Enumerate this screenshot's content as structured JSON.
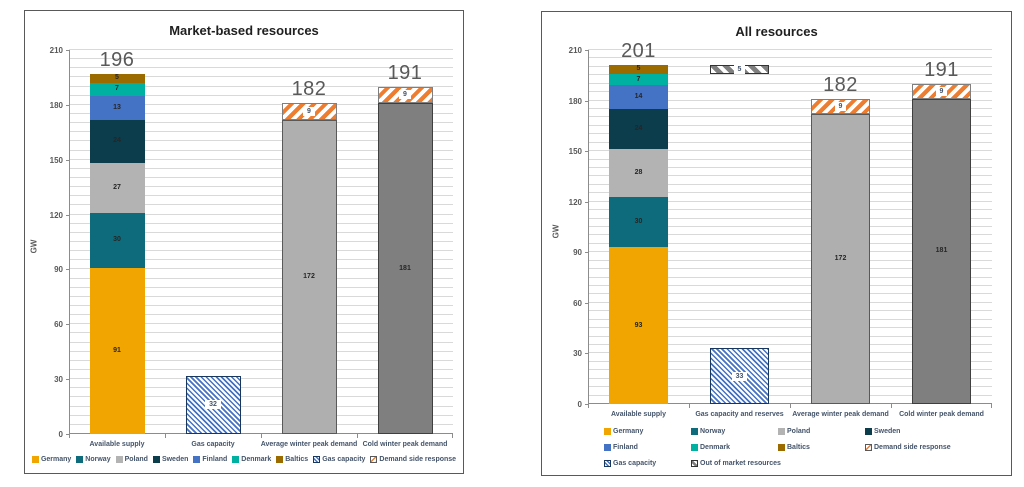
{
  "chart_data": [
    {
      "type": "bar",
      "stacked": true,
      "title": "Market-based resources",
      "ylabel": "GW",
      "ylim": [
        0,
        210
      ],
      "yticks": [
        0,
        30,
        60,
        90,
        120,
        150,
        180,
        210
      ],
      "minor_grid_step": 5,
      "grid": true,
      "legend_position": "bottom",
      "categories": [
        "Available supply",
        "Gas capacity",
        "Average winter peak demand",
        "Cold winter peak demand"
      ],
      "columns": [
        {
          "category": "Available supply",
          "total_label": "196",
          "segments": [
            {
              "name": "Germany",
              "value": 91,
              "label": "91",
              "fill": "#F0A500"
            },
            {
              "name": "Norway",
              "value": 30,
              "label": "30",
              "fill": "#0E6B7B"
            },
            {
              "name": "Poland",
              "value": 27,
              "label": "27",
              "fill": "#B3B3B3"
            },
            {
              "name": "Sweden",
              "value": 24,
              "label": "24",
              "fill": "#0B3D4D"
            },
            {
              "name": "Finland",
              "value": 13,
              "label": "13",
              "fill": "#4472C4"
            },
            {
              "name": "Denmark",
              "value": 7,
              "label": "7",
              "fill": "#00B0A0"
            },
            {
              "name": "Baltics",
              "value": 5,
              "label": "5",
              "fill": "#9C6B00"
            }
          ]
        },
        {
          "category": "Gas capacity",
          "segments": [
            {
              "name": "Gas capacity",
              "value": 32,
              "label": "32",
              "pattern": "hatch-blue",
              "label_box": true
            }
          ]
        },
        {
          "category": "Average winter peak demand",
          "total_label": "182",
          "segments": [
            {
              "name": "Average winter peak demand",
              "value": 172,
              "label": "172",
              "fill": "#AFAFAF",
              "border": "#595959"
            },
            {
              "name": "Demand side response",
              "value": 9,
              "label": "9",
              "pattern": "hatch-orange",
              "label_box": true
            }
          ]
        },
        {
          "category": "Cold winter peak demand",
          "total_label": "191",
          "segments": [
            {
              "name": "Cold winter peak demand",
              "value": 181,
              "label": "181",
              "fill": "#7F7F7F",
              "border": "#3F3F3F"
            },
            {
              "name": "Demand side response",
              "value": 9,
              "label": "9",
              "pattern": "hatch-orange",
              "label_box": true
            }
          ]
        }
      ],
      "legend": {
        "layout": "row",
        "items": [
          {
            "label": "Germany",
            "swatch": "solid",
            "color": "#F0A500"
          },
          {
            "label": "Norway",
            "swatch": "solid",
            "color": "#0E6B7B"
          },
          {
            "label": "Poland",
            "swatch": "solid",
            "color": "#B3B3B3"
          },
          {
            "label": "Sweden",
            "swatch": "solid",
            "color": "#0B3D4D"
          },
          {
            "label": "Finland",
            "swatch": "solid",
            "color": "#4472C4"
          },
          {
            "label": "Denmark",
            "swatch": "solid",
            "color": "#00B0A0"
          },
          {
            "label": "Baltics",
            "swatch": "solid",
            "color": "#9C6B00"
          },
          {
            "label": "Gas capacity",
            "swatch": "hatch-blue"
          },
          {
            "label": "Demand side response",
            "swatch": "hatch-orange"
          }
        ]
      }
    },
    {
      "type": "bar",
      "stacked": true,
      "title": "All resources",
      "ylabel": "GW",
      "ylim": [
        0,
        210
      ],
      "yticks": [
        0,
        30,
        60,
        90,
        120,
        150,
        180,
        210
      ],
      "minor_grid_step": 5,
      "grid": true,
      "legend_position": "bottom",
      "categories": [
        "Available supply",
        "Gas capacity and reserves",
        "Average winter peak demand",
        "Cold winter peak demand"
      ],
      "columns": [
        {
          "category": "Available supply",
          "total_label": "201",
          "segments": [
            {
              "name": "Germany",
              "value": 93,
              "label": "93",
              "fill": "#F0A500"
            },
            {
              "name": "Norway",
              "value": 30,
              "label": "30",
              "fill": "#0E6B7B"
            },
            {
              "name": "Poland",
              "value": 28,
              "label": "28",
              "fill": "#B3B3B3"
            },
            {
              "name": "Sweden",
              "value": 24,
              "label": "24",
              "fill": "#0B3D4D"
            },
            {
              "name": "Finland",
              "value": 14,
              "label": "14",
              "fill": "#4472C4"
            },
            {
              "name": "Denmark",
              "value": 7,
              "label": "7",
              "fill": "#00B0A0"
            },
            {
              "name": "Baltics",
              "value": 5,
              "label": "5",
              "fill": "#9C6B00"
            }
          ]
        },
        {
          "category": "Gas capacity and reserves",
          "segments": [
            {
              "name": "Gas capacity",
              "value": 33,
              "label": "33",
              "pattern": "hatch-blue",
              "label_box": true
            },
            {
              "name": "Out of market resources",
              "value": 5,
              "base": 196,
              "label": "5",
              "pattern": "hatch-gray",
              "label_box": true
            }
          ]
        },
        {
          "category": "Average winter peak demand",
          "total_label": "182",
          "segments": [
            {
              "name": "Average winter peak demand",
              "value": 172,
              "label": "172",
              "fill": "#AFAFAF",
              "border": "#595959"
            },
            {
              "name": "Demand side response",
              "value": 9,
              "label": "9",
              "pattern": "hatch-orange",
              "label_box": true
            }
          ]
        },
        {
          "category": "Cold winter peak demand",
          "total_label": "191",
          "segments": [
            {
              "name": "Cold winter peak demand",
              "value": 181,
              "label": "181",
              "fill": "#7F7F7F",
              "border": "#3F3F3F"
            },
            {
              "name": "Demand side response",
              "value": 9,
              "label": "9",
              "pattern": "hatch-orange",
              "label_box": true
            }
          ]
        }
      ],
      "legend": {
        "layout": "grid",
        "items": [
          {
            "label": "Germany",
            "swatch": "solid",
            "color": "#F0A500"
          },
          {
            "label": "Norway",
            "swatch": "solid",
            "color": "#0E6B7B"
          },
          {
            "label": "Poland",
            "swatch": "solid",
            "color": "#B3B3B3"
          },
          {
            "label": "Sweden",
            "swatch": "solid",
            "color": "#0B3D4D"
          },
          {
            "label": "Finland",
            "swatch": "solid",
            "color": "#4472C4"
          },
          {
            "label": "Denmark",
            "swatch": "solid",
            "color": "#00B0A0"
          },
          {
            "label": "Baltics",
            "swatch": "solid",
            "color": "#9C6B00"
          },
          {
            "label": "Demand side response",
            "swatch": "hatch-orange"
          },
          {
            "label": "Gas capacity",
            "swatch": "hatch-blue"
          },
          {
            "label": "Out of market resources",
            "swatch": "hatch-gray"
          }
        ]
      }
    }
  ]
}
